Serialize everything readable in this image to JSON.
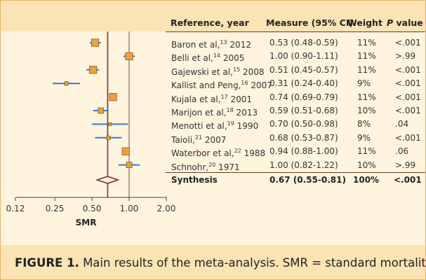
{
  "header": {
    "reference": "Reference, year",
    "measure": "Measure (95% CI)",
    "weight": "Weight",
    "pvalue_italic": "P",
    "pvalue_rest": " value"
  },
  "caption": {
    "label": "FIGURE 1.",
    "text": " Main results of the meta-analysis. SMR = standard mortality ratio."
  },
  "colors": {
    "marker": "#f0a03a",
    "ci_line": "#3a78c9",
    "reference_line": "#8b2a2a",
    "synthesis": "#8b2a2a"
  },
  "chart_data": {
    "type": "forest",
    "xlabel": "SMR",
    "x_scale": "log",
    "x_ticks": [
      0.12,
      0.25,
      0.5,
      1.0,
      2.0
    ],
    "x_tick_labels": [
      "0.12",
      "0.25",
      "0.50",
      "1.00",
      "2.00"
    ],
    "reference_line": 1.0,
    "pooled_line": 0.67,
    "studies": [
      {
        "author": "Baron et al,",
        "ref": "13",
        "year": "2012",
        "est": 0.53,
        "lo": 0.48,
        "hi": 0.59,
        "measure": "0.53 (0.48-0.59)",
        "weight": "11%",
        "p": "<.001"
      },
      {
        "author": "Belli et al,",
        "ref": "14",
        "year": "2005",
        "est": 1.0,
        "lo": 0.9,
        "hi": 1.11,
        "measure": "1.00 (0.90-1.11)",
        "weight": "11%",
        "p": ">.99"
      },
      {
        "author": "Gajewski et al,",
        "ref": "15",
        "year": "2008",
        "est": 0.51,
        "lo": 0.45,
        "hi": 0.57,
        "measure": "0.51 (0.45-0.57)",
        "weight": "11%",
        "p": "<.001"
      },
      {
        "author": "Kallist and Peng,",
        "ref": "16",
        "year": "2007",
        "est": 0.31,
        "lo": 0.24,
        "hi": 0.4,
        "measure": "0.31 (0.24-0.40)",
        "weight": "9%",
        "p": "<.001"
      },
      {
        "author": "Kujala et al,",
        "ref": "17",
        "year": "2001",
        "est": 0.74,
        "lo": 0.69,
        "hi": 0.79,
        "measure": "0.74 (0.69-0.79)",
        "weight": "11%",
        "p": "<.001"
      },
      {
        "author": "Marijon et al,",
        "ref": "18",
        "year": "2013",
        "est": 0.59,
        "lo": 0.51,
        "hi": 0.68,
        "measure": "0.59 (0.51-0.68)",
        "weight": "10%",
        "p": "<.001"
      },
      {
        "author": "Menotti et al,",
        "ref": "19",
        "year": "1990",
        "est": 0.7,
        "lo": 0.5,
        "hi": 0.98,
        "measure": "0.70 (0.50-0.98)",
        "weight": "8%",
        "p": ".04"
      },
      {
        "author": "Taioli,",
        "ref": "21",
        "year": "2007",
        "est": 0.68,
        "lo": 0.53,
        "hi": 0.87,
        "measure": "0.68 (0.53-0.87)",
        "weight": "9%",
        "p": "<.001"
      },
      {
        "author": "Waterbor et al,",
        "ref": "22",
        "year": "1988",
        "est": 0.94,
        "lo": 0.88,
        "hi": 1.0,
        "measure": "0.94 (0.88-1.00)",
        "weight": "11%",
        "p": ".06"
      },
      {
        "author": "Schnohr,",
        "ref": "20",
        "year": "1971",
        "est": 1.0,
        "lo": 0.82,
        "hi": 1.22,
        "measure": "1.00 (0.82-1.22)",
        "weight": "10%",
        "p": ">.99"
      }
    ],
    "synthesis": {
      "label": "Synthesis",
      "est": 0.67,
      "lo": 0.55,
      "hi": 0.81,
      "measure": "0.67 (0.55-0.81)",
      "weight": "100%",
      "p": "<.001"
    }
  }
}
